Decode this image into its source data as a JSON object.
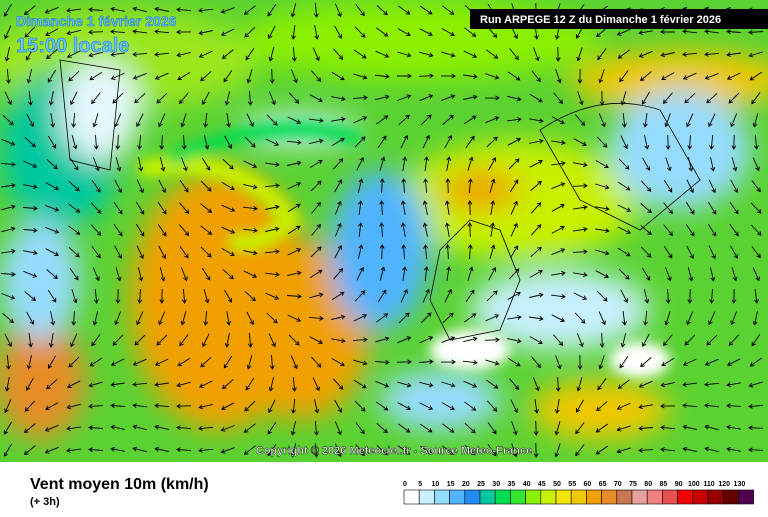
{
  "header": {
    "date": "Dimanche 1 février 2026",
    "time": "15:00 locale",
    "run": "Run ARPEGE 12 Z du Dimanche 1 février 2026"
  },
  "copyright": "Copyright © 2026 Meteociel.fr - Source Meteo-France",
  "footer": {
    "title": "Vent moyen 10m (km/h)",
    "step": "(+ 3h)"
  },
  "legend": {
    "labels": [
      0,
      5,
      10,
      15,
      20,
      25,
      30,
      35,
      40,
      45,
      50,
      55,
      60,
      65,
      70,
      75,
      80,
      85,
      90,
      100,
      110,
      120,
      130
    ],
    "colors": [
      "#ffffff",
      "#c8f0ff",
      "#96dcff",
      "#50b4ff",
      "#1e8cf0",
      "#00c8a0",
      "#00dc50",
      "#32e632",
      "#8cf000",
      "#c8f000",
      "#f0e600",
      "#f0c800",
      "#f0a000",
      "#e68c28",
      "#c87850",
      "#e6a0a0",
      "#f08080",
      "#e65050",
      "#f00000",
      "#c80000",
      "#960000",
      "#640000",
      "#500050"
    ]
  }
}
